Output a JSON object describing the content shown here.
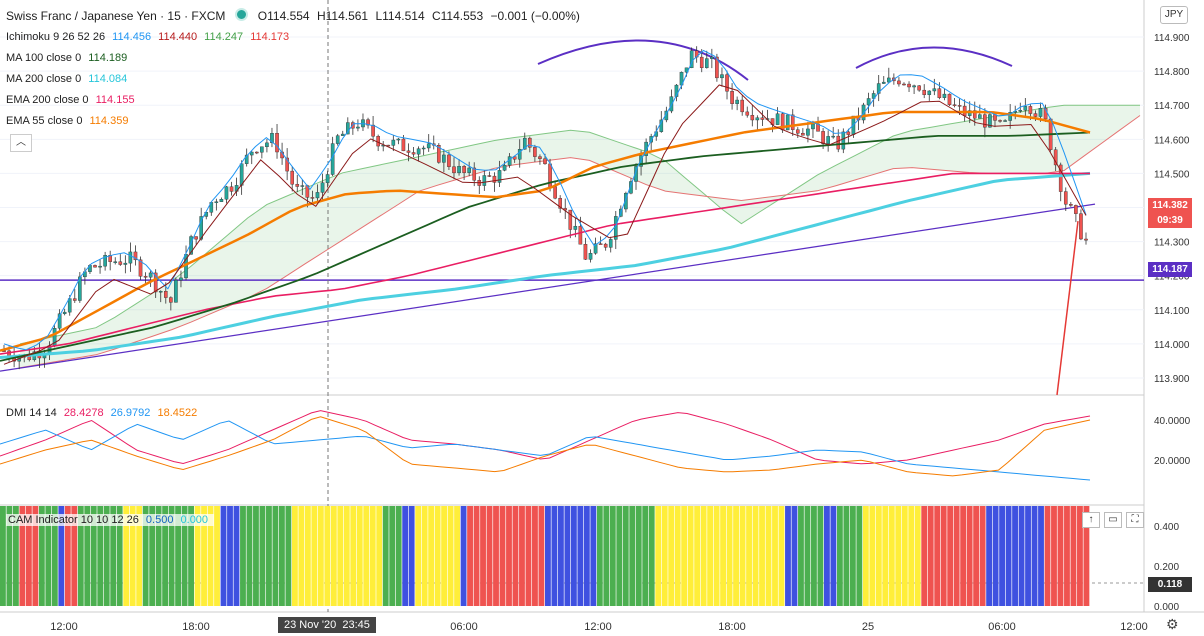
{
  "header": {
    "symbol": "Swiss Franc / Japanese Yen · 15 · FXCM",
    "open": "O114.554",
    "high": "H114.561",
    "low": "L114.514",
    "close": "C114.553",
    "change": "−0.001 (−0.00%)"
  },
  "indicators": {
    "ichimoku": {
      "label": "Ichimoku 9 26 52 26",
      "v1": "114.456",
      "v2": "114.440",
      "v3": "114.247",
      "v4": "114.173"
    },
    "ma100": {
      "label": "MA 100 close 0",
      "value": "114.189"
    },
    "ma200": {
      "label": "MA 200 close 0",
      "value": "114.084"
    },
    "ema200": {
      "label": "EMA 200 close 0",
      "value": "114.155"
    },
    "ema55": {
      "label": "EMA 55 close 0",
      "value": "114.359"
    },
    "dmi": {
      "label": "DMI 14 14",
      "v1": "28.4278",
      "v2": "26.9792",
      "v3": "18.4522"
    },
    "cam": {
      "label": "CAM Indicator 10 10 12 26",
      "v1": "0.500",
      "v2": "0.000"
    }
  },
  "currency": "JPY",
  "price_tag": "114.382",
  "countdown": "09:39",
  "line_tag": "114.187",
  "cam_tag": "0.118",
  "crosshair_date": "23 Nov '20",
  "crosshair_time": "23:45",
  "collapse_icon": "chevron-up-icon",
  "colors": {
    "up": "#26a69a",
    "down": "#ef5350",
    "ema55": "#f57c00",
    "ema200": "#e91e63",
    "ma100": "#1b5e20",
    "ma200": "#4dd0e1",
    "trend": "#5b2fc4",
    "dmi_plus": "#e91e63",
    "dmi_minus": "#2196f3",
    "adx": "#f57c00"
  },
  "chart_data": {
    "type": "candlestick",
    "y_axis": {
      "min": 113.85,
      "max": 114.95,
      "ticks": [
        "114.900",
        "114.800",
        "114.700",
        "114.600",
        "114.500",
        "114.400",
        "114.300",
        "114.200",
        "114.100",
        "114.000",
        "113.900"
      ]
    },
    "x_axis": {
      "ticks": [
        "12:00",
        "18:00",
        "23 Nov '20",
        "06:00",
        "12:00",
        "18:00",
        "25",
        "06:00",
        "12:00"
      ]
    },
    "dmi_axis": {
      "ticks": [
        "40.0000",
        "20.0000"
      ]
    },
    "cam_axis": {
      "ticks": [
        "0.400",
        "0.200",
        "0.000"
      ]
    },
    "close_path": [
      113.98,
      113.96,
      113.99,
      114.1,
      114.22,
      114.24,
      114.25,
      114.2,
      114.12,
      114.3,
      114.42,
      114.47,
      114.58,
      114.6,
      114.45,
      114.42,
      114.6,
      114.65,
      114.6,
      114.58,
      114.58,
      114.55,
      114.5,
      114.48,
      114.5,
      114.6,
      114.52,
      114.38,
      114.25,
      114.3,
      114.48,
      114.6,
      114.7,
      114.85,
      114.82,
      114.72,
      114.68,
      114.66,
      114.64,
      114.62,
      114.58,
      114.66,
      114.75,
      114.78,
      114.76,
      114.72,
      114.68,
      114.66,
      114.63,
      114.72,
      114.66,
      114.42,
      114.3
    ],
    "ema55": [
      113.98,
      114.02,
      114.1,
      114.18,
      114.25,
      114.32,
      114.4,
      114.44,
      114.45,
      114.44,
      114.43,
      114.45,
      114.52,
      114.56,
      114.59,
      114.62,
      114.64,
      114.66,
      114.68,
      114.68,
      114.68,
      114.66,
      114.62
    ],
    "ema200": [
      113.97,
      114.0,
      114.05,
      114.1,
      114.14,
      114.16,
      114.2,
      114.25,
      114.3,
      114.35,
      114.38,
      114.41,
      114.44,
      114.47,
      114.5,
      114.5,
      114.5
    ],
    "ma100": [
      113.95,
      114.0,
      114.05,
      114.12,
      114.2,
      114.3,
      114.4,
      114.47,
      114.52,
      114.55,
      114.57,
      114.59,
      114.61,
      114.61,
      114.62
    ],
    "ma200": [
      113.96,
      113.98,
      114.02,
      114.08,
      114.13,
      114.16,
      114.2,
      114.23,
      114.28,
      114.35,
      114.42,
      114.48,
      114.5
    ],
    "trendline": [
      113.92,
      114.41
    ],
    "horizontal_line": 114.187
  }
}
